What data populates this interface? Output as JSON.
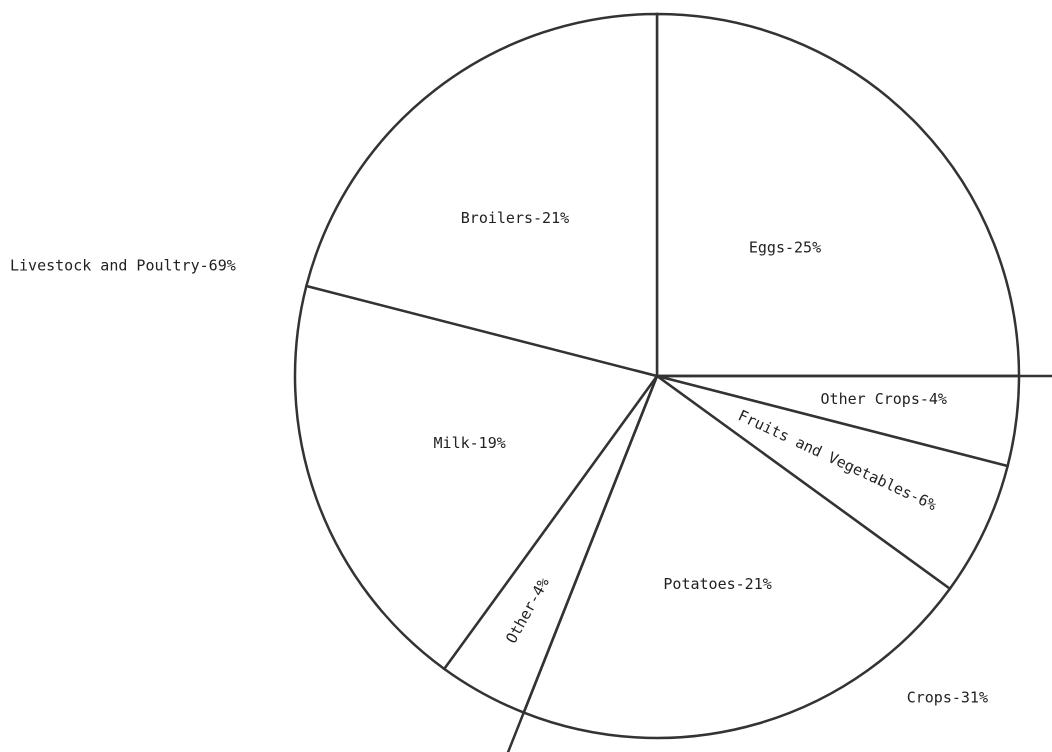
{
  "chart_data": {
    "type": "pie",
    "values": [
      25,
      4,
      6,
      21,
      4,
      19,
      21
    ],
    "value_labels": [
      "Eggs-25%",
      "Other Crops-4%",
      "Fruits and Vegetables-6%",
      "Potatoes-21%",
      "Other-4%",
      "Milk-19%",
      "Broilers-21%"
    ],
    "groups": {
      "values": [
        69,
        31
      ],
      "value_labels": [
        "Livestock and Poultry-69%",
        "Crops-31%"
      ]
    }
  }
}
